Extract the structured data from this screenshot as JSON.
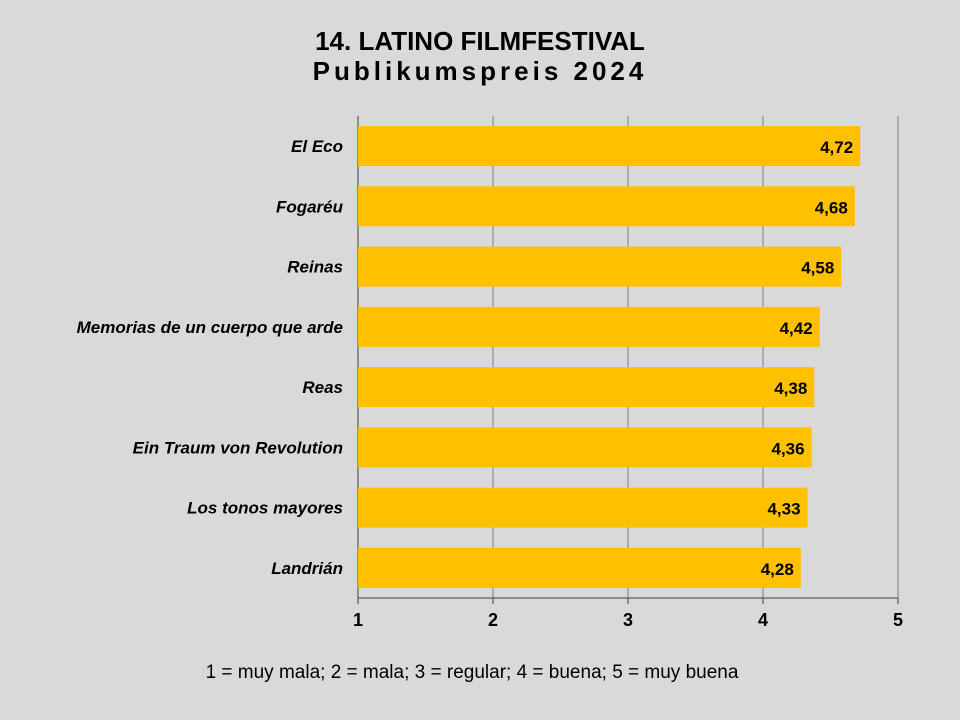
{
  "title": "14. LATINO FILMFESTIVAL",
  "subtitle": "Publikumspreis 2024",
  "footnote": "1 = muy mala; 2 = mala; 3 = regular; 4 = buena; 5 = muy buena",
  "colors": {
    "background": "#d9d9d9",
    "bar": "#ffc000",
    "grid": "#7f7f7f"
  },
  "chart_data": {
    "type": "bar",
    "orientation": "horizontal",
    "categories": [
      "El Eco",
      "Fogaréu",
      "Reinas",
      "Memorias de un cuerpo que arde",
      "Reas",
      "Ein Traum von Revolution",
      "Los tonos mayores",
      "Landrián"
    ],
    "values": [
      4.72,
      4.68,
      4.58,
      4.42,
      4.38,
      4.36,
      4.33,
      4.28
    ],
    "value_labels": [
      "4,72",
      "4,68",
      "4,58",
      "4,42",
      "4,38",
      "4,36",
      "4,33",
      "4,28"
    ],
    "xlim": [
      1,
      5
    ],
    "xticks": [
      "1",
      "2",
      "3",
      "4",
      "5"
    ],
    "grid": "vertical",
    "legend": "none"
  }
}
